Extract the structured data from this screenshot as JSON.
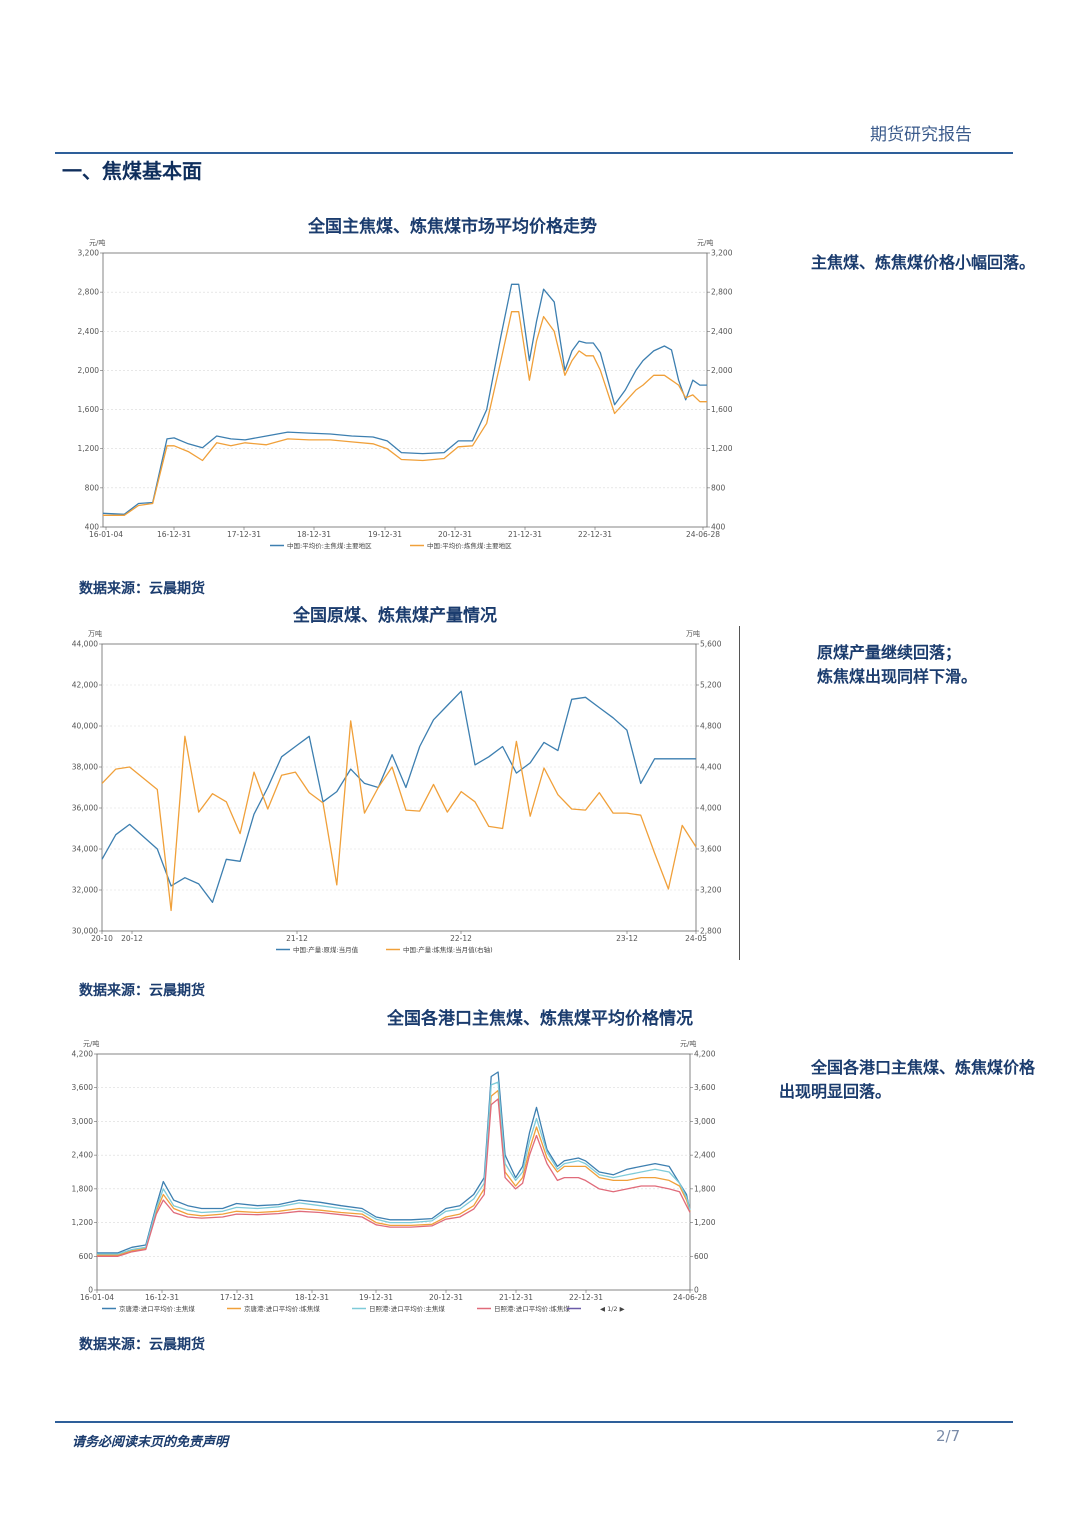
{
  "header": {
    "report_type": "期货研究报告",
    "section_title": "一、焦煤基本面"
  },
  "footer": {
    "disclaimer": "请务必阅读末页的免责声明",
    "page": "2/7"
  },
  "charts": [
    {
      "title": "全国主焦煤、炼焦煤市场平均价格走势",
      "source": "数据来源：云晨期货",
      "note": "主焦煤、炼焦煤价格小幅回落。"
    },
    {
      "title": "全国原煤、炼焦煤产量情况",
      "source": "数据来源：云晨期货",
      "note_lines": [
        "原煤产量继续回落；",
        "炼焦煤出现同样下滑。"
      ]
    },
    {
      "title": "全国各港口主焦煤、炼焦煤平均价格情况",
      "source": "数据来源：云晨期货",
      "note": "全国各港口主焦煤、炼焦煤价格出现明显回落。"
    }
  ],
  "chart_data": [
    {
      "type": "line",
      "unit_left": "元/吨",
      "unit_right": "元/吨",
      "ylim": [
        400,
        3200
      ],
      "yticks": [
        "400",
        "800",
        "1,200",
        "1,600",
        "2,000",
        "2,400",
        "2,800",
        "3,200"
      ],
      "xticks": [
        "16-01-04",
        "16-12-31",
        "17-12-31",
        "18-12-31",
        "19-12-31",
        "20-12-31",
        "21-12-31",
        "22-12-31",
        "24-06-28"
      ],
      "x": [
        2016.0,
        2016.3,
        2016.5,
        2016.7,
        2016.9,
        2017.0,
        2017.2,
        2017.4,
        2017.6,
        2017.8,
        2018.0,
        2018.3,
        2018.6,
        2018.9,
        2019.2,
        2019.5,
        2019.8,
        2020.0,
        2020.2,
        2020.5,
        2020.8,
        2021.0,
        2021.2,
        2021.4,
        2021.6,
        2021.75,
        2021.85,
        2022.0,
        2022.1,
        2022.2,
        2022.35,
        2022.5,
        2022.6,
        2022.7,
        2022.8,
        2022.9,
        2023.0,
        2023.2,
        2023.35,
        2023.5,
        2023.6,
        2023.75,
        2023.9,
        2024.0,
        2024.1,
        2024.2,
        2024.3,
        2024.4,
        2024.5
      ],
      "series": [
        {
          "name": "中国:平均价:主焦煤:主要地区",
          "color": "#3d7fb0",
          "values": [
            540,
            530,
            640,
            650,
            1300,
            1310,
            1250,
            1210,
            1330,
            1300,
            1290,
            1330,
            1370,
            1360,
            1350,
            1330,
            1320,
            1280,
            1160,
            1150,
            1160,
            1280,
            1280,
            1600,
            2350,
            2880,
            2880,
            2100,
            2500,
            2830,
            2700,
            2000,
            2200,
            2300,
            2280,
            2280,
            2180,
            1650,
            1800,
            2000,
            2100,
            2200,
            2250,
            2210,
            1900,
            1700,
            1900,
            1850,
            1850
          ]
        },
        {
          "name": "中国:平均价:炼焦煤:主要地区",
          "color": "#f0a03a",
          "values": [
            520,
            520,
            620,
            640,
            1230,
            1230,
            1170,
            1080,
            1260,
            1230,
            1260,
            1240,
            1300,
            1290,
            1290,
            1270,
            1250,
            1200,
            1090,
            1080,
            1100,
            1220,
            1230,
            1460,
            2100,
            2600,
            2600,
            1900,
            2300,
            2550,
            2400,
            1950,
            2100,
            2200,
            2150,
            2150,
            2000,
            1560,
            1680,
            1800,
            1850,
            1950,
            1950,
            1900,
            1850,
            1720,
            1750,
            1680,
            1680
          ]
        }
      ]
    },
    {
      "type": "line",
      "unit_left": "万吨",
      "unit_right": "万吨",
      "ylim_left": [
        30000,
        44000
      ],
      "ylim_right": [
        2800,
        5600
      ],
      "yticks_left": [
        "30,000",
        "32,000",
        "34,000",
        "36,000",
        "38,000",
        "40,000",
        "42,000",
        "44,000"
      ],
      "yticks_right": [
        "2,800",
        "3,200",
        "3,600",
        "4,000",
        "4,400",
        "4,800",
        "5,200",
        "5,600"
      ],
      "xticks": [
        "20-10",
        "20-12",
        "21-12",
        "22-12",
        "23-12",
        "24-05"
      ],
      "x": [
        0,
        1,
        2,
        4,
        5,
        6,
        7,
        8,
        9,
        10,
        11,
        12,
        13,
        14,
        15,
        16,
        17,
        18,
        19,
        20,
        21,
        22,
        23,
        24,
        25,
        26,
        27,
        28,
        29,
        30,
        31,
        32,
        33,
        34,
        35,
        36,
        37,
        38,
        39,
        40,
        41,
        42,
        43
      ],
      "series": [
        {
          "name": "中国:产量:原煤:当月值",
          "color": "#3d7fb0",
          "axis": "left",
          "values": [
            33500,
            34700,
            35200,
            34000,
            32200,
            32600,
            32300,
            31400,
            33500,
            33400,
            35700,
            37000,
            38500,
            39000,
            39500,
            36300,
            36800,
            37900,
            37200,
            37000,
            38600,
            37000,
            39000,
            40300,
            41000,
            41700,
            38100,
            38500,
            39000,
            37700,
            38200,
            39200,
            38800,
            41300,
            41400,
            40900,
            40400,
            39800,
            37200,
            38400,
            38400,
            38400,
            38400
          ]
        },
        {
          "name": "中国:产量:炼焦煤:当月值(右轴)",
          "color": "#f0a03a",
          "axis": "right",
          "values": [
            4240,
            4380,
            4400,
            4180,
            3000,
            4700,
            3960,
            4140,
            4060,
            3750,
            4350,
            3990,
            4320,
            4350,
            4150,
            4050,
            3250,
            4850,
            3950,
            4200,
            4400,
            3980,
            3970,
            4230,
            3960,
            4160,
            4060,
            3820,
            3800,
            4650,
            3920,
            4390,
            4130,
            3990,
            3980,
            4150,
            3950,
            3950,
            3930,
            3560,
            3210,
            3830,
            3620
          ]
        }
      ]
    },
    {
      "type": "line",
      "unit_left": "元/吨",
      "unit_right": "元/吨",
      "ylim": [
        0,
        4200
      ],
      "yticks": [
        "0",
        "600",
        "1,200",
        "1,800",
        "2,400",
        "3,000",
        "3,600",
        "4,200"
      ],
      "xticks": [
        "16-01-04",
        "16-12-31",
        "17-12-31",
        "18-12-31",
        "19-12-31",
        "20-12-31",
        "21-12-31",
        "22-12-31",
        "24-06-28"
      ],
      "legend_page": "1/2",
      "x": [
        2016.0,
        2016.3,
        2016.5,
        2016.7,
        2016.85,
        2016.95,
        2017.1,
        2017.3,
        2017.5,
        2017.8,
        2018.0,
        2018.3,
        2018.6,
        2018.9,
        2019.2,
        2019.5,
        2019.8,
        2020.0,
        2020.2,
        2020.5,
        2020.8,
        2021.0,
        2021.2,
        2021.4,
        2021.55,
        2021.65,
        2021.75,
        2021.85,
        2022.0,
        2022.1,
        2022.2,
        2022.3,
        2022.45,
        2022.6,
        2022.7,
        2022.9,
        2023.0,
        2023.2,
        2023.4,
        2023.6,
        2023.8,
        2024.0,
        2024.2,
        2024.35,
        2024.45,
        2024.5
      ],
      "series": [
        {
          "name": "京唐港:进口平均价:主焦煤",
          "color": "#3d7fb0",
          "values": [
            660,
            660,
            760,
            800,
            1500,
            1930,
            1600,
            1500,
            1450,
            1450,
            1540,
            1500,
            1520,
            1600,
            1560,
            1500,
            1450,
            1300,
            1250,
            1250,
            1270,
            1450,
            1500,
            1700,
            2000,
            3800,
            3880,
            2400,
            2000,
            2200,
            2800,
            3250,
            2500,
            2200,
            2300,
            2350,
            2300,
            2100,
            2050,
            2150,
            2200,
            2250,
            2200,
            1900,
            1700,
            1400
          ]
        },
        {
          "name": "京唐港:进口平均价:炼焦煤",
          "color": "#f0a03a",
          "values": [
            620,
            620,
            700,
            740,
            1400,
            1700,
            1450,
            1350,
            1320,
            1350,
            1400,
            1380,
            1400,
            1450,
            1420,
            1380,
            1350,
            1200,
            1150,
            1150,
            1170,
            1300,
            1350,
            1500,
            1800,
            3450,
            3550,
            2100,
            1850,
            2000,
            2500,
            2900,
            2350,
            2100,
            2200,
            2200,
            2200,
            2000,
            1950,
            1950,
            2000,
            2000,
            1950,
            1850,
            1600,
            1400
          ]
        },
        {
          "name": "日照港:进口平均价:主焦煤",
          "color": "#7ecbd9",
          "values": [
            640,
            640,
            720,
            760,
            1450,
            1800,
            1500,
            1420,
            1380,
            1400,
            1470,
            1450,
            1480,
            1550,
            1500,
            1450,
            1400,
            1260,
            1200,
            1200,
            1230,
            1400,
            1440,
            1620,
            1900,
            3650,
            3700,
            2250,
            1950,
            2100,
            2650,
            3050,
            2450,
            2150,
            2250,
            2300,
            2250,
            2050,
            2000,
            2050,
            2100,
            2150,
            2100,
            1900,
            1650,
            1420
          ]
        },
        {
          "name": "日照港:进口平均价:炼焦煤",
          "color": "#e06b7a",
          "values": [
            600,
            600,
            680,
            720,
            1350,
            1600,
            1380,
            1300,
            1280,
            1300,
            1350,
            1340,
            1360,
            1400,
            1380,
            1340,
            1300,
            1160,
            1120,
            1120,
            1140,
            1260,
            1300,
            1440,
            1700,
            3300,
            3400,
            2000,
            1800,
            1900,
            2400,
            2750,
            2250,
            1950,
            2000,
            2000,
            1950,
            1800,
            1750,
            1800,
            1850,
            1850,
            1800,
            1750,
            1500,
            1380
          ]
        }
      ]
    }
  ]
}
